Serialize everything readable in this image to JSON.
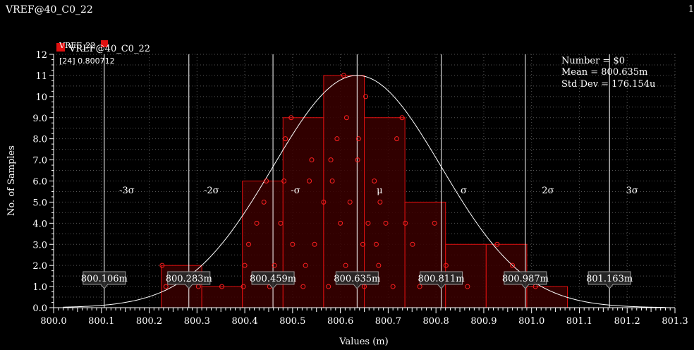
{
  "window": {
    "title": "VREF@40_C0_22",
    "corner_text": "1"
  },
  "colors": {
    "background": "#000000",
    "bar_fill": "#3a0000",
    "bar_stroke": "#e01010",
    "point": "#ff2020",
    "curve": "#ffffff",
    "grid": "#555555",
    "marker_box": "#2a2a2a"
  },
  "legend": {
    "label": "VREF@40_C0_22",
    "overlay_label": "VREF_22",
    "sub_label": "[24] 0.800712"
  },
  "stats": {
    "number": "Number = $0",
    "mean": "Mean = 800.635m",
    "std": "Std Dev = 176.154u"
  },
  "chart_data": {
    "type": "bar",
    "xlabel": "Values (m)",
    "ylabel": "No. of Samples",
    "xlim": [
      800.0,
      801.3
    ],
    "ylim": [
      0,
      12
    ],
    "grid": true,
    "x_ticks": [
      "800.0",
      "800.1",
      "800.2",
      "800.3",
      "800.4",
      "800.5",
      "800.6",
      "800.7",
      "800.8",
      "800.9",
      "801.0",
      "801.1",
      "801.2",
      "801.3"
    ],
    "y_ticks": [
      "0.0",
      "1.0",
      "2.0",
      "3.0",
      "4.0",
      "5.0",
      "6.0",
      "7.0",
      "8.0",
      "9.0",
      "10",
      "11",
      "12"
    ],
    "bins": [
      {
        "x0": 800.225,
        "x1": 800.31,
        "count": 2
      },
      {
        "x0": 800.31,
        "x1": 800.395,
        "count": 1
      },
      {
        "x0": 800.395,
        "x1": 800.48,
        "count": 6
      },
      {
        "x0": 800.48,
        "x1": 800.565,
        "count": 9
      },
      {
        "x0": 800.565,
        "x1": 800.65,
        "count": 11
      },
      {
        "x0": 800.65,
        "x1": 800.735,
        "count": 9
      },
      {
        "x0": 800.735,
        "x1": 800.82,
        "count": 5
      },
      {
        "x0": 800.82,
        "x1": 800.905,
        "count": 3
      },
      {
        "x0": 800.905,
        "x1": 800.99,
        "count": 3
      },
      {
        "x0": 800.99,
        "x1": 801.075,
        "count": 1
      }
    ],
    "samples": [
      [
        800.227,
        2
      ],
      [
        800.235,
        1
      ],
      [
        800.303,
        1
      ],
      [
        800.352,
        1
      ],
      [
        800.397,
        1
      ],
      [
        800.4,
        2
      ],
      [
        800.408,
        3
      ],
      [
        800.425,
        4
      ],
      [
        800.44,
        5
      ],
      [
        800.445,
        6
      ],
      [
        800.452,
        1
      ],
      [
        800.462,
        2
      ],
      [
        800.475,
        4
      ],
      [
        800.482,
        6
      ],
      [
        800.485,
        8
      ],
      [
        800.497,
        9
      ],
      [
        800.5,
        3
      ],
      [
        800.522,
        1
      ],
      [
        800.527,
        2
      ],
      [
        800.535,
        6
      ],
      [
        800.54,
        7
      ],
      [
        800.546,
        3
      ],
      [
        800.565,
        5
      ],
      [
        800.575,
        1
      ],
      [
        800.58,
        7
      ],
      [
        800.583,
        6
      ],
      [
        800.593,
        8
      ],
      [
        800.6,
        4
      ],
      [
        800.607,
        11
      ],
      [
        800.611,
        2
      ],
      [
        800.613,
        9
      ],
      [
        800.62,
        5
      ],
      [
        800.636,
        7
      ],
      [
        800.638,
        8
      ],
      [
        800.647,
        3
      ],
      [
        800.65,
        1
      ],
      [
        800.653,
        10
      ],
      [
        800.658,
        4
      ],
      [
        800.671,
        6
      ],
      [
        800.675,
        3
      ],
      [
        800.68,
        2
      ],
      [
        800.683,
        5
      ],
      [
        800.695,
        4
      ],
      [
        800.71,
        1
      ],
      [
        800.718,
        8
      ],
      [
        800.729,
        9
      ],
      [
        800.736,
        4
      ],
      [
        800.751,
        3
      ],
      [
        800.766,
        1
      ],
      [
        800.797,
        4
      ],
      [
        800.821,
        2
      ],
      [
        800.866,
        1
      ],
      [
        800.928,
        3
      ],
      [
        800.96,
        2
      ],
      [
        801.008,
        1
      ]
    ],
    "normal_curve": {
      "mean": 800.635,
      "peak": 11,
      "std_m": 0.176154
    },
    "sigma_lines": [
      {
        "label": "-3σ",
        "x": 800.106,
        "value_label": "800.106m"
      },
      {
        "label": "-2σ",
        "x": 800.283,
        "value_label": "800.283m"
      },
      {
        "label": "-σ",
        "x": 800.459,
        "value_label": "800.459m"
      },
      {
        "label": "μ",
        "x": 800.635,
        "value_label": "800.635m"
      },
      {
        "label": "σ",
        "x": 800.811,
        "value_label": "800.811m"
      },
      {
        "label": "2σ",
        "x": 800.987,
        "value_label": "800.987m"
      },
      {
        "label": "3σ",
        "x": 801.163,
        "value_label": "801.163m"
      }
    ]
  }
}
